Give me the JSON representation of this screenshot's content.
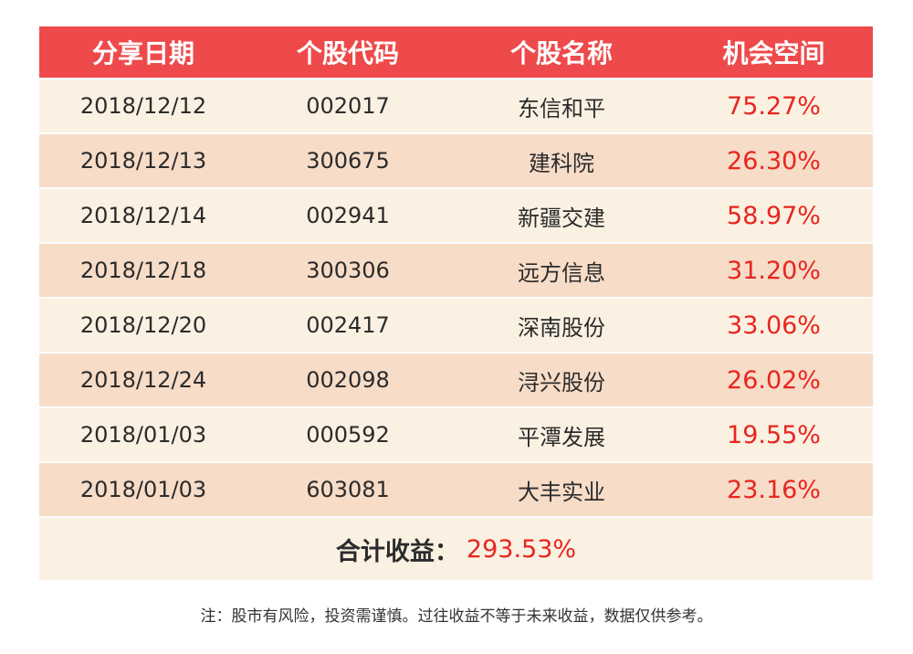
{
  "table": {
    "headers": [
      "分享日期",
      "个股代码",
      "个股名称",
      "机会空间"
    ],
    "rows": [
      {
        "date": "2018/12/12",
        "code": "002017",
        "name": "东信和平",
        "space": "75.27%"
      },
      {
        "date": "2018/12/13",
        "code": "300675",
        "name": "建科院",
        "space": "26.30%"
      },
      {
        "date": "2018/12/14",
        "code": "002941",
        "name": "新疆交建",
        "space": "58.97%"
      },
      {
        "date": "2018/12/18",
        "code": "300306",
        "name": "远方信息",
        "space": "31.20%"
      },
      {
        "date": "2018/12/20",
        "code": "002417",
        "name": "深南股份",
        "space": "33.06%"
      },
      {
        "date": "2018/12/24",
        "code": "002098",
        "name": "浔兴股份",
        "space": "26.02%"
      },
      {
        "date": "2018/01/03",
        "code": "000592",
        "name": "平潭发展",
        "space": "19.55%"
      },
      {
        "date": "2018/01/03",
        "code": "603081",
        "name": "大丰实业",
        "space": "23.16%"
      }
    ],
    "total": {
      "label": "合计收益：",
      "value": "293.53%"
    }
  },
  "note": "注：股市有风险，投资需谨慎。过往收益不等于未来收益，数据仅供参考。",
  "colors": {
    "header_bg": "#ee4a4b",
    "row_light": "#fbf1e2",
    "row_dark": "#f7dcc8",
    "percent_red": "#e8251f"
  }
}
